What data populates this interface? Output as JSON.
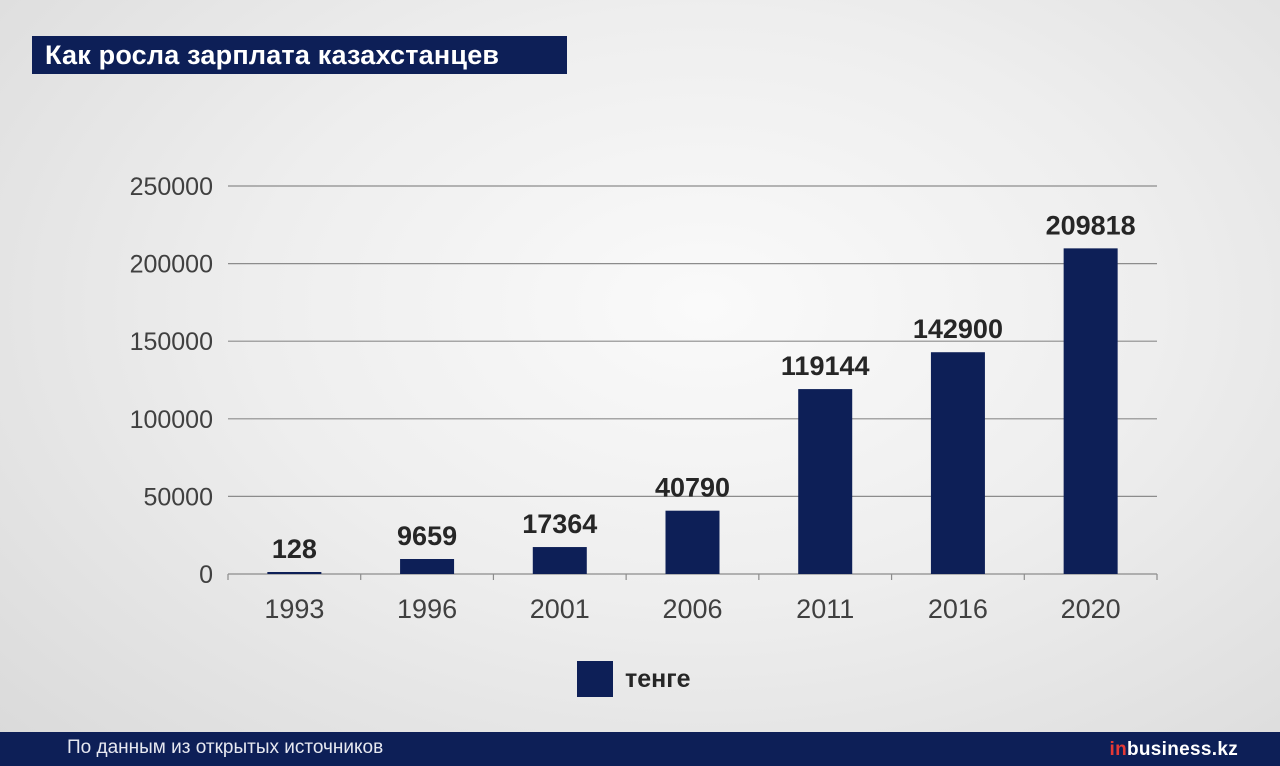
{
  "title": "Как росла зарплата казахстанцев",
  "colors": {
    "bar": "#0d1f57",
    "grid": "#8c8c8c",
    "label": "#262626",
    "tick": "#404040",
    "brand_accent": "#e53935"
  },
  "footer": {
    "source": "По данным из открытых источников",
    "brand_prefix": "in",
    "brand_main": "business.kz"
  },
  "chart_data": {
    "type": "bar",
    "categories": [
      "1993",
      "1996",
      "2001",
      "2006",
      "2011",
      "2016",
      "2020"
    ],
    "series": [
      {
        "name": "тенге",
        "values": [
          128,
          9659,
          17364,
          40790,
          119144,
          142900,
          209818
        ]
      }
    ],
    "data_labels": [
      "128",
      "9659",
      "17364",
      "40790",
      "119144",
      "142900",
      "209818"
    ],
    "yticks": [
      "0",
      "50000",
      "100000",
      "150000",
      "200000",
      "250000"
    ],
    "ylim": [
      0,
      250000
    ],
    "grid": true,
    "legend_position": "bottom-center"
  }
}
